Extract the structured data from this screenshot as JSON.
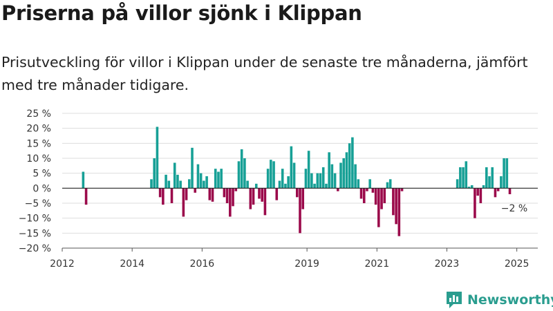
{
  "header": {
    "title": "Priserna på villor sjönk i Klippan",
    "subtitle": "Prisutveckling för villor i Klippan under de senaste tre månaderna, jämfört med tre månader tidigare."
  },
  "brand": {
    "name": "Newsworthy",
    "color": "#2a9d8f"
  },
  "chart_data": {
    "type": "bar",
    "title": "",
    "xlabel": "",
    "ylabel": "",
    "ylim": [
      -20,
      25
    ],
    "xlim": [
      "2012",
      "2025"
    ],
    "grid": true,
    "legend": "none",
    "y_ticks": [
      "25 %",
      "20 %",
      "15 %",
      "10 %",
      "5 %",
      "0 %",
      "−5 %",
      "−10 %",
      "−15 %",
      "−20 %"
    ],
    "x_ticks": [
      "2012",
      "2014",
      "2016",
      "2019",
      "2021",
      "2023",
      "2025"
    ],
    "colors": {
      "positive": "#17a096",
      "negative": "#9b0a4b"
    },
    "annotation": "−2 %",
    "values": [
      5.5,
      -5.5,
      3,
      10,
      20.5,
      -3,
      -5.5,
      4.5,
      2.5,
      -5,
      8.5,
      4.5,
      2.5,
      -9.5,
      -4,
      3,
      13.5,
      -1.5,
      8,
      5,
      2.5,
      4,
      -4,
      -4.5,
      6.5,
      5.5,
      6.5,
      -3,
      -5,
      -9.5,
      -6,
      -1,
      9,
      13,
      10,
      2.5,
      -7,
      -5.5,
      1.5,
      -3.5,
      -4.5,
      -9,
      6.5,
      9.5,
      9,
      -4,
      2.5,
      6.5,
      1.5,
      4,
      14,
      8.5,
      -3,
      -15,
      -7,
      6.5,
      12.5,
      5,
      1.5,
      5,
      5,
      7,
      1.5,
      12,
      8,
      5,
      -1,
      8.5,
      10,
      12,
      15,
      17,
      8,
      3,
      -3.5,
      -5,
      -1,
      3,
      -1.5,
      -5.5,
      -13,
      -7,
      -5,
      2,
      3,
      -9,
      -12,
      -16,
      -1,
      3,
      7,
      7,
      9,
      0.5,
      1,
      -10,
      -2.5,
      -5,
      1,
      7,
      4,
      7,
      -3,
      -1,
      4,
      10,
      10,
      -2
    ]
  }
}
